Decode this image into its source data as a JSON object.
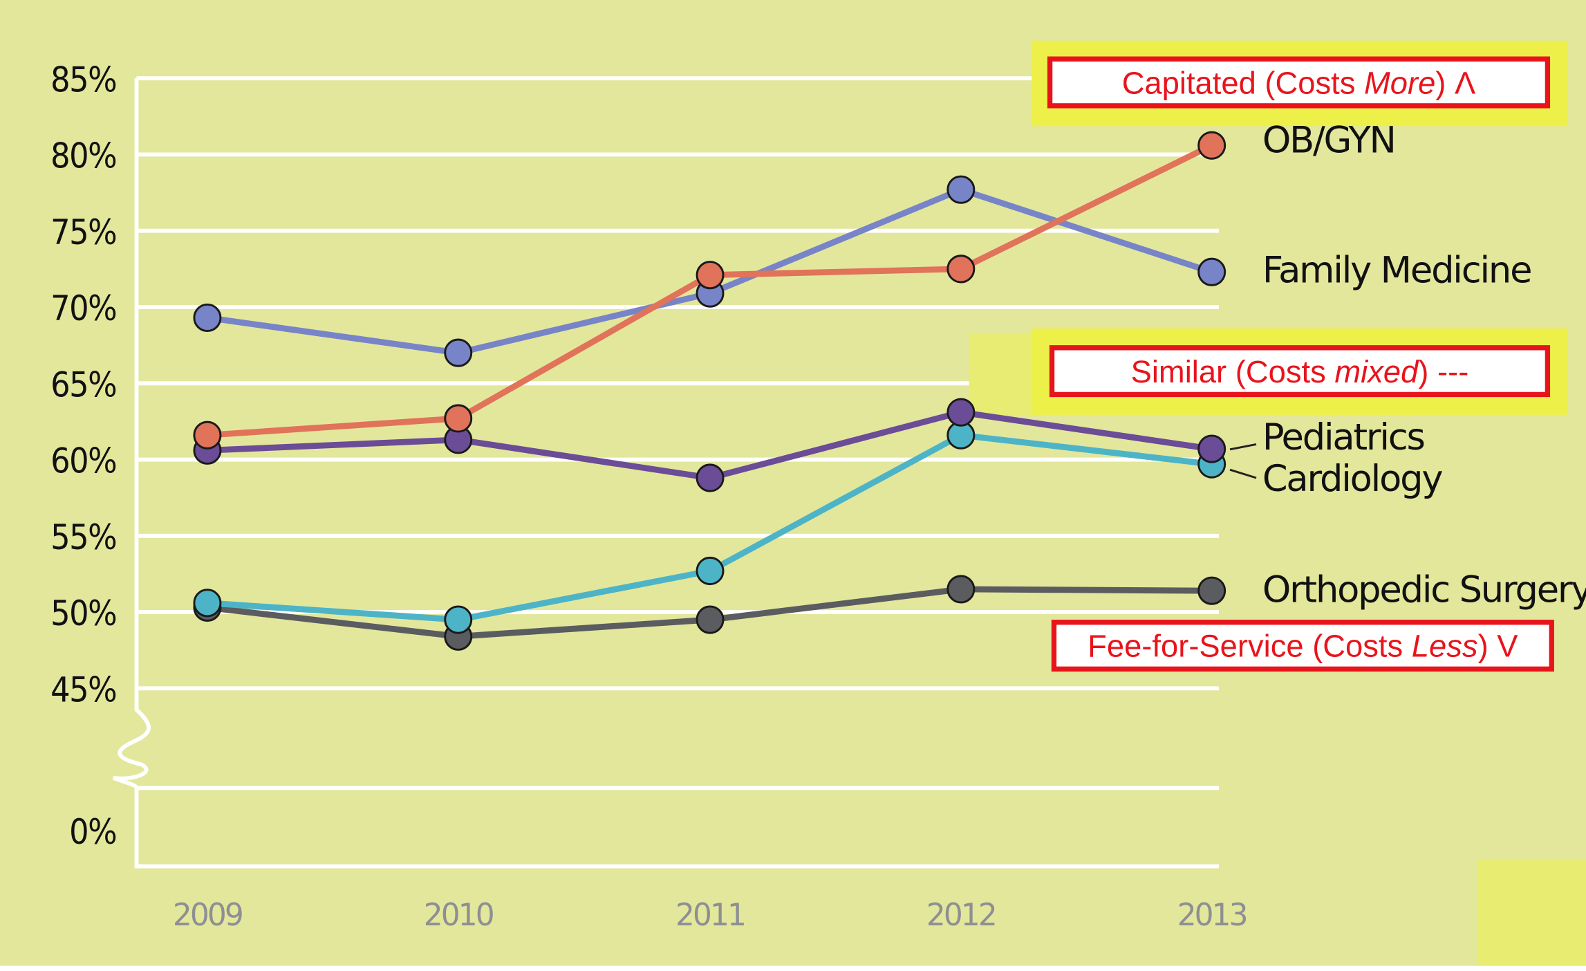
{
  "chart_data": {
    "type": "line",
    "title": "",
    "xlabel": "",
    "ylabel": "",
    "categories": [
      "2009",
      "2010",
      "2011",
      "2012",
      "2013"
    ],
    "y_ticks": [
      "85%",
      "80%",
      "75%",
      "70%",
      "65%",
      "60%",
      "55%",
      "50%",
      "45%",
      "0%"
    ],
    "ylim": [
      45,
      85
    ],
    "y_axis_break": true,
    "grid": true,
    "series": [
      {
        "name": "OB/GYN",
        "color": "#e0735a",
        "values": [
          61.6,
          62.7,
          72.1,
          72.5,
          80.6
        ]
      },
      {
        "name": "Family Medicine",
        "color": "#7884c8",
        "values": [
          69.3,
          67.0,
          70.9,
          77.7,
          72.3
        ]
      },
      {
        "name": "Pediatrics",
        "color": "#6b4c97",
        "values": [
          60.6,
          61.3,
          58.8,
          63.1,
          60.7
        ]
      },
      {
        "name": "Cardiology",
        "color": "#4db4c8",
        "values": [
          50.6,
          49.5,
          52.7,
          61.6,
          59.7
        ]
      },
      {
        "name": "Orthopedic Surgery",
        "color": "#5b5c60",
        "values": [
          50.3,
          48.4,
          49.5,
          51.5,
          51.4
        ]
      }
    ],
    "annotations": [
      {
        "parts": [
          "Capitated (Costs ",
          "More",
          ")  Λ"
        ],
        "color": "#e8141c"
      },
      {
        "parts": [
          "Similar (Costs ",
          "mixed",
          ")  ---"
        ],
        "color": "#e8141c"
      },
      {
        "parts": [
          "Fee-for-Service (Costs ",
          "Less",
          ")  V"
        ],
        "color": "#e8141c"
      }
    ]
  },
  "colors": {
    "background": "#e3e79c",
    "highlight": "#eef04a",
    "grid": "#ffffff"
  }
}
